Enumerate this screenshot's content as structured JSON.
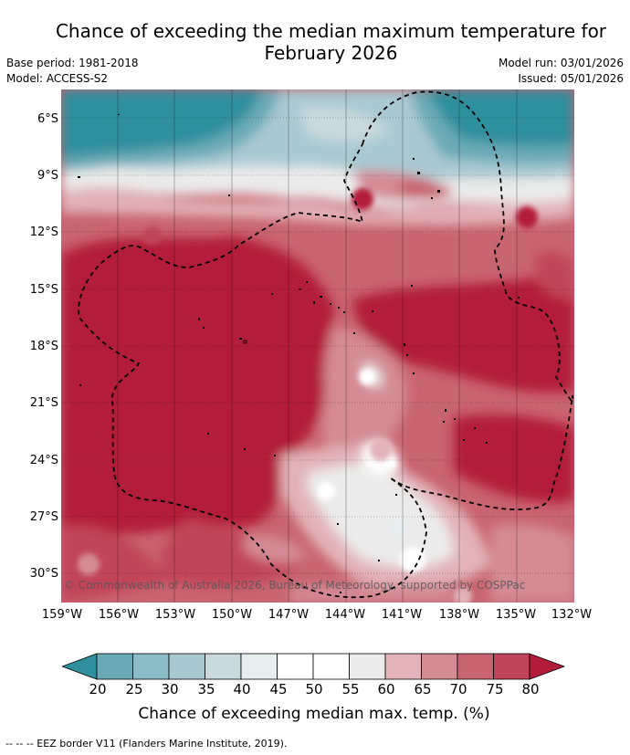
{
  "title_line1": "Chance of exceeding the median maximum temperature for",
  "title_line2": "February 2026",
  "base_period": "Base period: 1981-2018",
  "model": "Model: ACCESS-S2",
  "model_run": "Model run: 03/01/2026",
  "issued": "Issued: 05/01/2026",
  "copyright": "© Commonwealth of Australia 2026, Bureau of Meteorology, supported by COSPPac",
  "lat_labels": [
    "6°S",
    "9°S",
    "12°S",
    "15°S",
    "18°S",
    "21°S",
    "24°S",
    "27°S",
    "30°S"
  ],
  "lon_labels": [
    "159°W",
    "156°W",
    "153°W",
    "150°W",
    "147°W",
    "144°W",
    "141°W",
    "138°W",
    "135°W",
    "132°W"
  ],
  "colorbar": {
    "ticks": [
      "20",
      "25",
      "30",
      "35",
      "40",
      "45",
      "50",
      "55",
      "60",
      "65",
      "70",
      "75",
      "80"
    ],
    "label": "Chance of exceeding median max. temp. (%)",
    "colors": [
      "#2f8f9d",
      "#6aaab7",
      "#8cbcc7",
      "#a9c9d1",
      "#c9d9de",
      "#e7eef0",
      "#ffffff",
      "#ffffff",
      "#ebebeb",
      "#e2b3b8",
      "#d48b94",
      "#c96471",
      "#c1455a",
      "#b31b3a"
    ]
  },
  "footer": "-- -- -- EEZ border V11 (Flanders Marine Institute, 2019)."
}
